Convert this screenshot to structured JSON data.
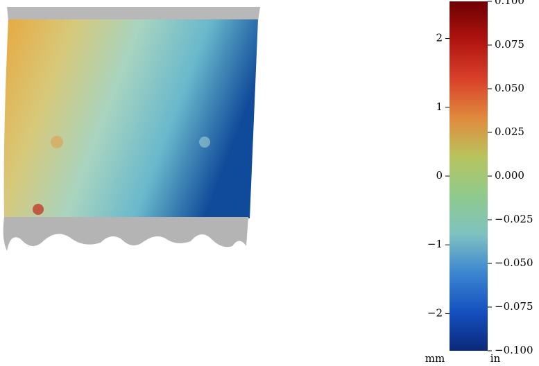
{
  "chart_data": {
    "type": "colorbar",
    "ylabel": "mm",
    "y2label": "in",
    "ylim": [
      -2.54,
      2.54
    ],
    "yticks": [
      {
        "value": -2,
        "label": "−2"
      },
      {
        "value": -1,
        "label": "−1"
      },
      0,
      1,
      2
    ],
    "y2lim": [
      -0.1,
      0.1
    ],
    "y2ticks": [
      {
        "value": -0.1,
        "label": "−0.100"
      },
      {
        "value": -0.075,
        "label": "−0.075"
      },
      {
        "value": -0.05,
        "label": "−0.050"
      },
      {
        "value": -0.025,
        "label": "−0.025"
      },
      {
        "value": 0,
        "label": "0.000"
      },
      0.025,
      {
        "value": 0.05,
        "label": "0.050"
      },
      0.075,
      {
        "value": 0.1,
        "label": "0.100"
      }
    ],
    "colormap": [
      "#0b2878",
      "#1550c0",
      "#3b86d0",
      "#7fc2c0",
      "#8fca8c",
      "#b8c45e",
      "#e08a3c",
      "#d8402a",
      "#b01410",
      "#6e0000"
    ]
  }
}
